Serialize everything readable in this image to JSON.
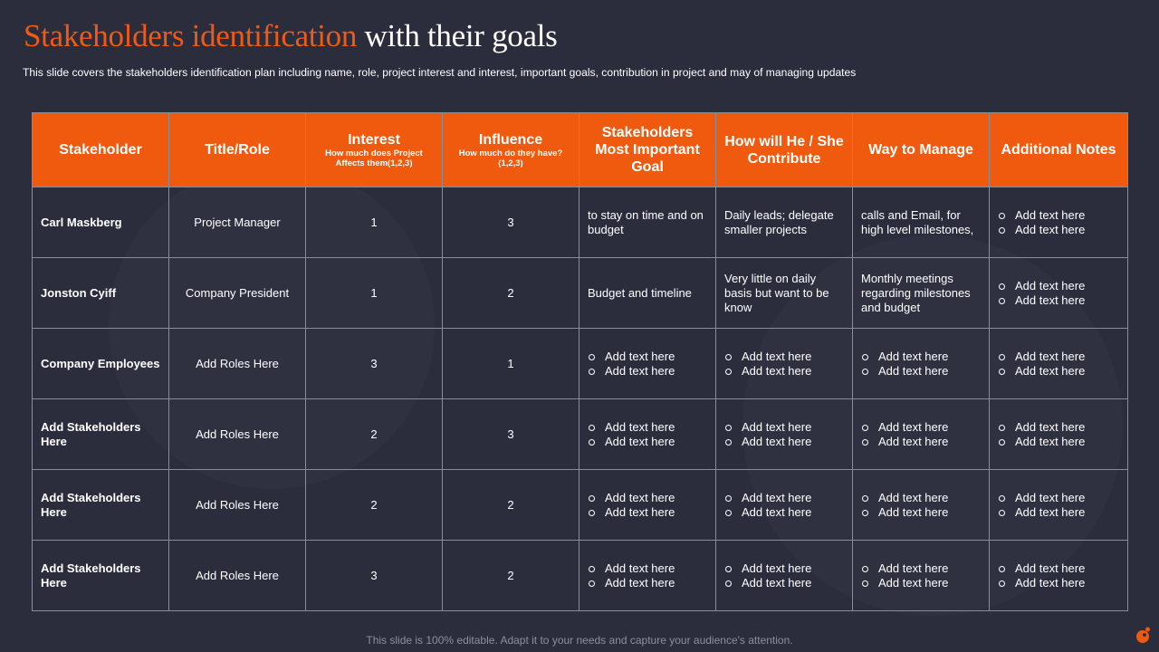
{
  "header": {
    "title_accent": "Stakeholders identification",
    "title_rest": "with their goals",
    "subtitle": "This slide covers the stakeholders identification plan including name, role, project interest and interest, important goals, contribution in project and may of managing updates"
  },
  "table": {
    "columns": [
      {
        "label": "Stakeholder",
        "sub": ""
      },
      {
        "label": "Title/Role",
        "sub": ""
      },
      {
        "label": "Interest",
        "sub": "How much does Project Affects them(1,2,3)"
      },
      {
        "label": "Influence",
        "sub": "How much do they have? (1,2,3)"
      },
      {
        "label": "Stakeholders Most Important Goal",
        "sub": ""
      },
      {
        "label": "How will He / She Contribute",
        "sub": ""
      },
      {
        "label": "Way to Manage",
        "sub": ""
      },
      {
        "label": "Additional Notes",
        "sub": ""
      }
    ],
    "rows": [
      {
        "stakeholder": "Carl Maskberg",
        "role": "Project Manager",
        "interest": "1",
        "influence": "3",
        "goal": "to stay on time and on budget",
        "contribute": "Daily leads; delegate smaller projects",
        "manage": "calls and Email, for high level milestones,",
        "notes": [
          "Add text here",
          "Add text here"
        ]
      },
      {
        "stakeholder": "Jonston Cyiff",
        "role": "Company President",
        "interest": "1",
        "influence": "2",
        "goal": "Budget and timeline",
        "contribute": "Very little on daily basis but want to be know",
        "manage": "Monthly meetings regarding milestones and budget",
        "notes": [
          "Add text here",
          "Add text here"
        ]
      },
      {
        "stakeholder": "Company Employees",
        "role": "Add Roles Here",
        "interest": "3",
        "influence": "1",
        "goal": [
          "Add text here",
          "Add text here"
        ],
        "contribute": [
          "Add text here",
          "Add text here"
        ],
        "manage": [
          "Add text here",
          "Add text here"
        ],
        "notes": [
          "Add text here",
          "Add text here"
        ]
      },
      {
        "stakeholder": "Add Stakeholders Here",
        "role": "Add Roles Here",
        "interest": "2",
        "influence": "3",
        "goal": [
          "Add text here",
          "Add text here"
        ],
        "contribute": [
          "Add text here",
          "Add text here"
        ],
        "manage": [
          "Add text here",
          "Add text here"
        ],
        "notes": [
          "Add text here",
          "Add text here"
        ]
      },
      {
        "stakeholder": "Add Stakeholders Here",
        "role": "Add Roles Here",
        "interest": "2",
        "influence": "2",
        "goal": [
          "Add text here",
          "Add text here"
        ],
        "contribute": [
          "Add text here",
          "Add text here"
        ],
        "manage": [
          "Add text here",
          "Add text here"
        ],
        "notes": [
          "Add text here",
          "Add text here"
        ]
      },
      {
        "stakeholder": "Add Stakeholders Here",
        "role": "Add Roles Here",
        "interest": "3",
        "influence": "2",
        "goal": [
          "Add text here",
          "Add text here"
        ],
        "contribute": [
          "Add text here",
          "Add text here"
        ],
        "manage": [
          "Add text here",
          "Add text here"
        ],
        "notes": [
          "Add text here",
          "Add text here"
        ]
      }
    ]
  },
  "footer": {
    "text": "This slide is 100% editable. Adapt it to your needs and capture your audience's attention."
  },
  "colors": {
    "background": "#2b2d3d",
    "accent": "#f05a0e",
    "border": "#8a8c99"
  },
  "icons": {
    "logo": "company-logo-icon"
  }
}
